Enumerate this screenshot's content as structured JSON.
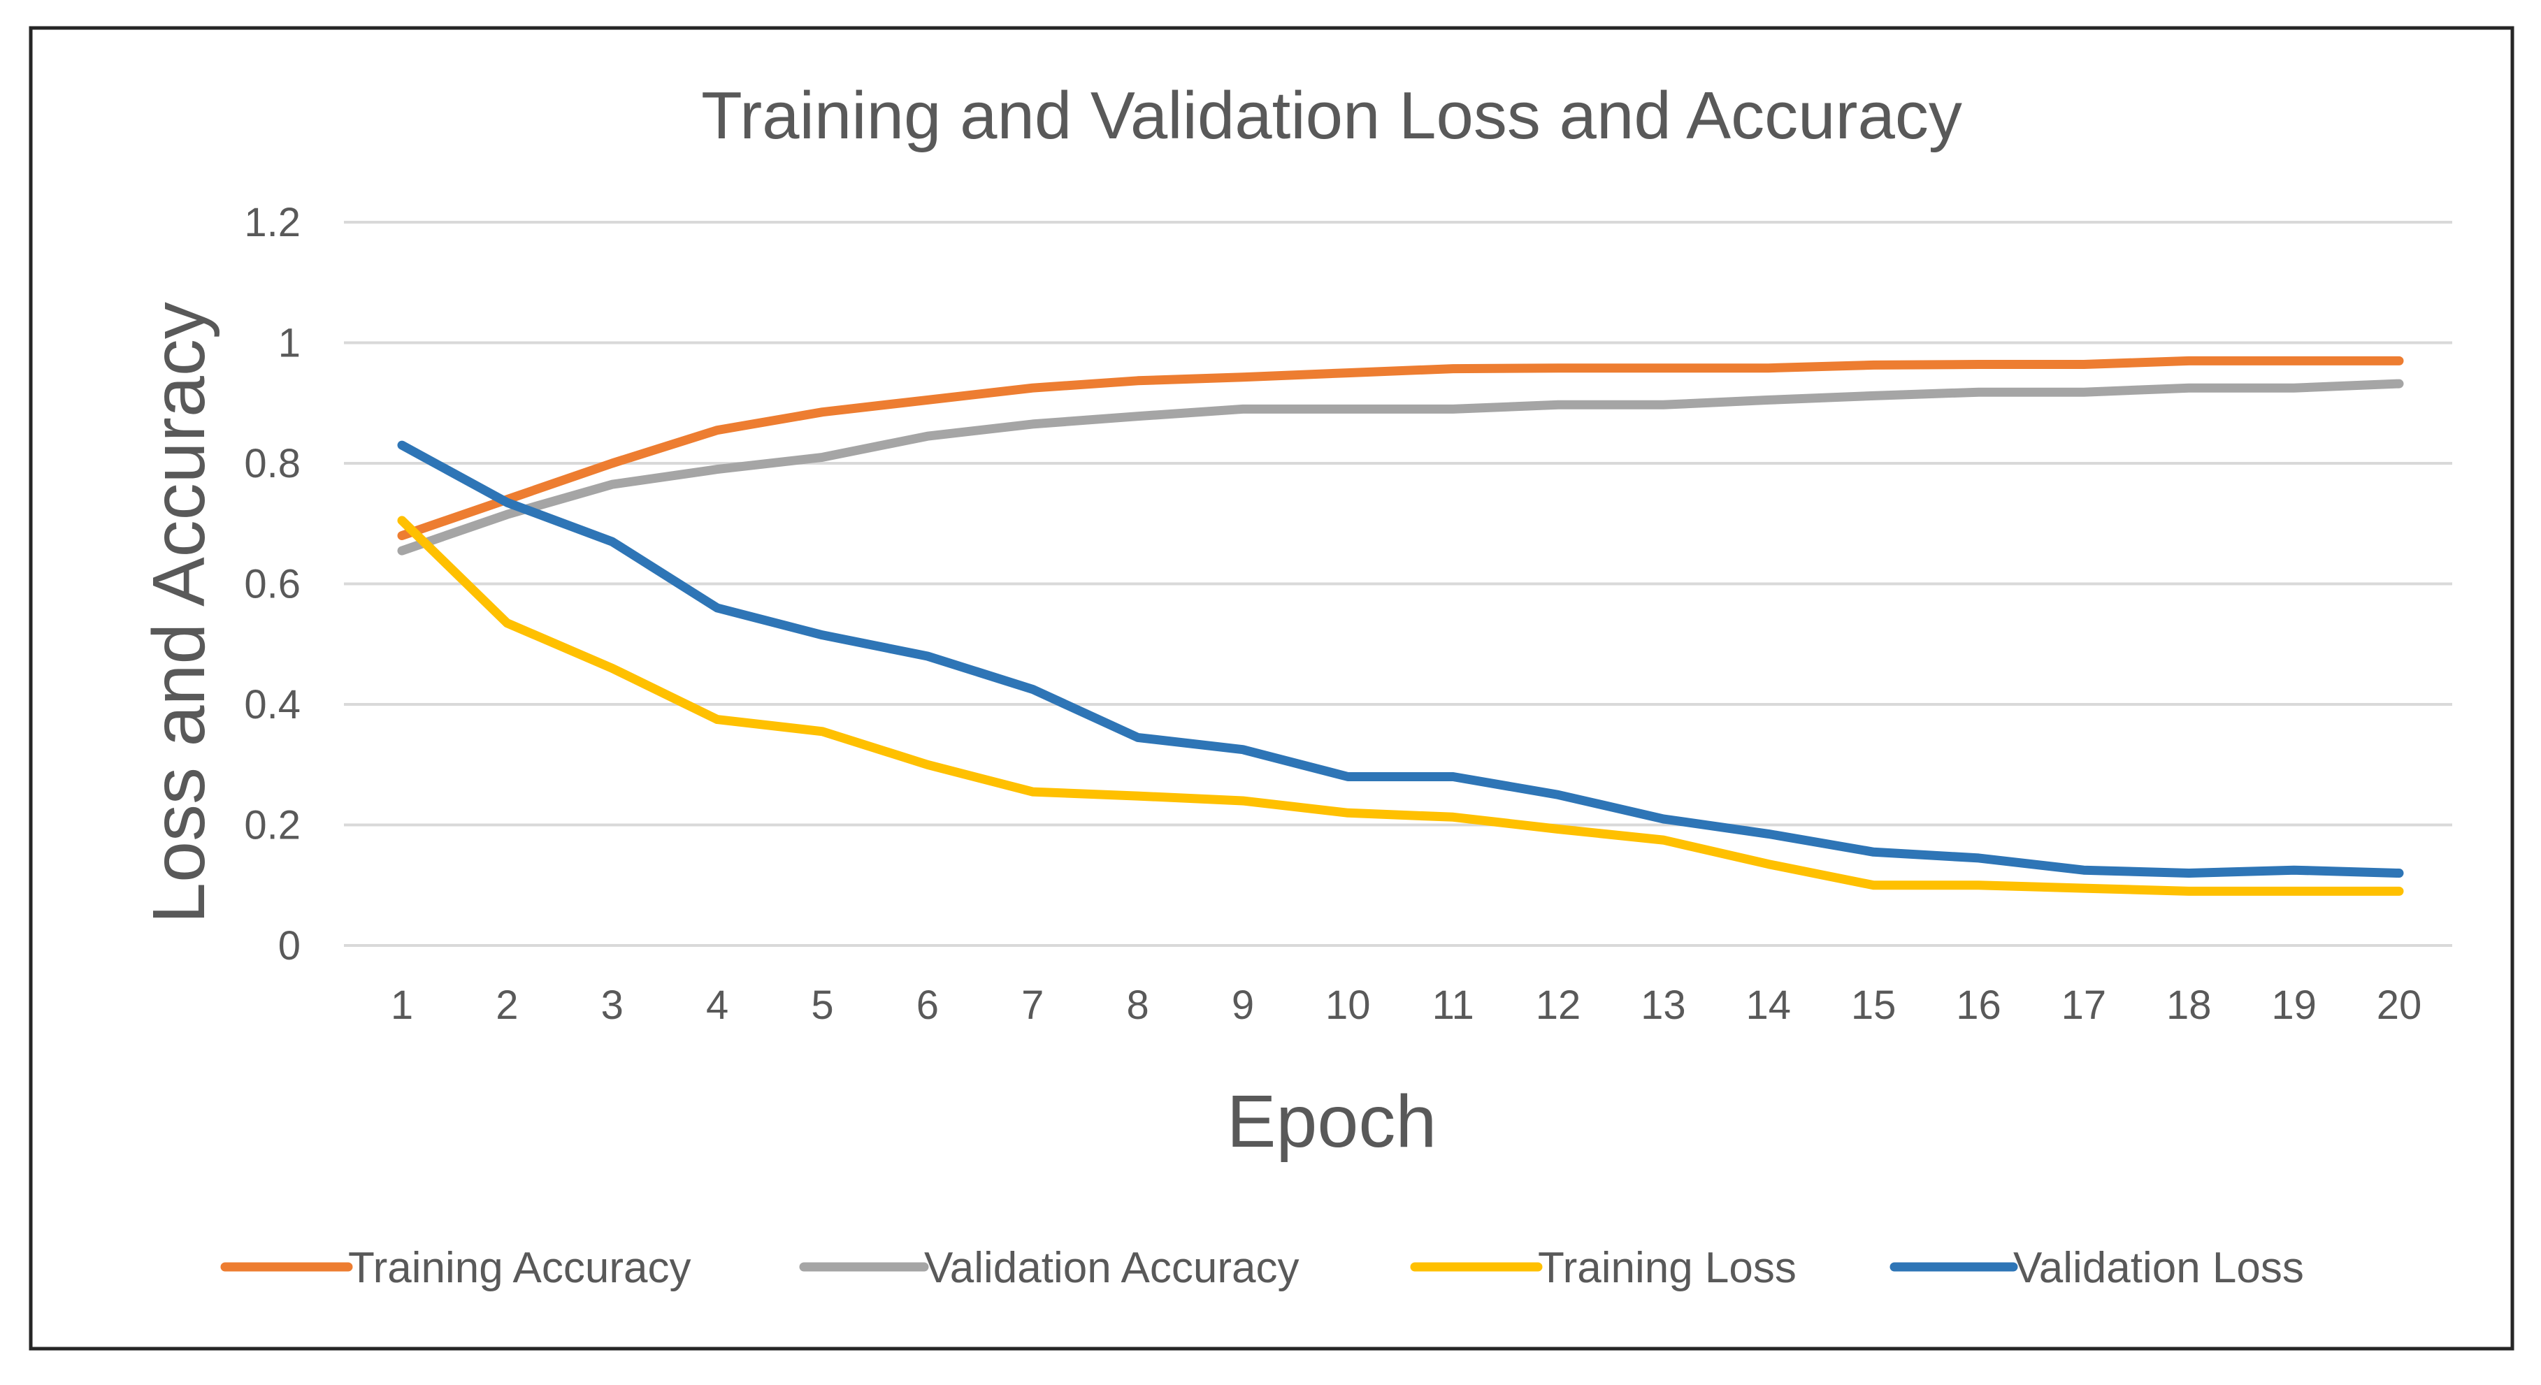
{
  "chart_data": {
    "type": "line",
    "title": "Training and Validation Loss and Accuracy",
    "xlabel": "Epoch",
    "ylabel": "Loss and Accuracy",
    "x": [
      1,
      2,
      3,
      4,
      5,
      6,
      7,
      8,
      9,
      10,
      11,
      12,
      13,
      14,
      15,
      16,
      17,
      18,
      19,
      20
    ],
    "ylim": [
      0,
      1.2
    ],
    "yticks": [
      0,
      0.2,
      0.4,
      0.6,
      0.8,
      1,
      1.2
    ],
    "ytick_labels": [
      "0",
      "0.2",
      "0.4",
      "0.6",
      "0.8",
      "1",
      "1.2"
    ],
    "grid": true,
    "legend_position": "bottom",
    "series": [
      {
        "name": "Training Accuracy",
        "color": "#ed7d31",
        "values": [
          0.68,
          0.74,
          0.8,
          0.855,
          0.885,
          0.905,
          0.925,
          0.937,
          0.943,
          0.95,
          0.957,
          0.958,
          0.958,
          0.958,
          0.963,
          0.964,
          0.964,
          0.97,
          0.97,
          0.97
        ]
      },
      {
        "name": "Validation Accuracy",
        "color": "#a5a5a5",
        "values": [
          0.655,
          0.715,
          0.765,
          0.79,
          0.81,
          0.845,
          0.865,
          0.878,
          0.89,
          0.89,
          0.89,
          0.897,
          0.897,
          0.905,
          0.912,
          0.918,
          0.918,
          0.925,
          0.925,
          0.932
        ]
      },
      {
        "name": "Training Loss",
        "color": "#ffc000",
        "values": [
          0.705,
          0.535,
          0.46,
          0.375,
          0.355,
          0.3,
          0.255,
          0.248,
          0.24,
          0.22,
          0.213,
          0.193,
          0.175,
          0.135,
          0.1,
          0.1,
          0.095,
          0.09,
          0.09,
          0.09
        ]
      },
      {
        "name": "Validation Loss",
        "color": "#2e75b6",
        "values": [
          0.83,
          0.735,
          0.67,
          0.56,
          0.515,
          0.48,
          0.425,
          0.345,
          0.325,
          0.28,
          0.28,
          0.25,
          0.21,
          0.185,
          0.155,
          0.145,
          0.125,
          0.12,
          0.125,
          0.12
        ]
      }
    ]
  }
}
